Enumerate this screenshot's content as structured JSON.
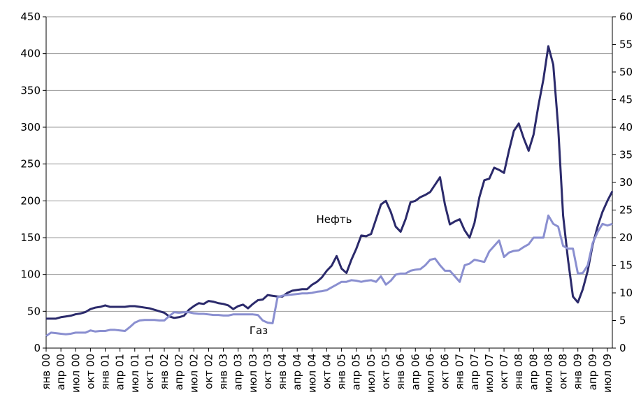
{
  "chart_data": {
    "type": "line",
    "categories": [
      "янв 00",
      null,
      null,
      "апр 00",
      null,
      null,
      "июл 00",
      null,
      null,
      "окт 00",
      null,
      null,
      "янв 01",
      null,
      null,
      "апр 01",
      null,
      null,
      "июл 01",
      null,
      null,
      "окт 01",
      null,
      null,
      "янв 02",
      null,
      null,
      "апр 02",
      null,
      null,
      "июл 02",
      null,
      null,
      "окт 02",
      null,
      null,
      "янв 03",
      null,
      null,
      "апр 03",
      null,
      null,
      "июл 03",
      null,
      null,
      "окт 03",
      null,
      null,
      "янв 04",
      null,
      null,
      "апр 04",
      null,
      null,
      "июл 04",
      null,
      null,
      "окт 04",
      null,
      null,
      "янв 05",
      null,
      null,
      "апр 05",
      null,
      null,
      "июл 05",
      null,
      null,
      "окт 05",
      null,
      null,
      "янв 06",
      null,
      null,
      "апр 06",
      null,
      null,
      "июл 06",
      null,
      null,
      "окт 06",
      null,
      null,
      "янв 07",
      null,
      null,
      "апр 07",
      null,
      null,
      "июл 07",
      null,
      null,
      "окт 07",
      null,
      null,
      "янв 08",
      null,
      null,
      "апр 08",
      null,
      null,
      "июл 08",
      null,
      null,
      "окт 08",
      null,
      null,
      "янв 09",
      null,
      null,
      "апр 09",
      null,
      null,
      "июл 09",
      null
    ],
    "series": [
      {
        "name": "Нефть",
        "color": "#2b2a6b",
        "values": [
          40,
          40,
          40,
          42,
          43,
          44,
          46,
          47,
          49,
          53,
          55,
          56,
          58,
          56,
          56,
          56,
          56,
          57,
          57,
          56,
          55,
          54,
          52,
          50,
          48,
          43,
          41,
          42,
          44,
          52,
          57,
          61,
          60,
          64,
          63,
          61,
          60,
          58,
          53,
          57,
          59,
          54,
          60,
          65,
          66,
          72,
          71,
          70,
          70,
          75,
          78,
          79,
          80,
          80,
          86,
          90,
          96,
          105,
          112,
          125,
          108,
          102,
          120,
          135,
          153,
          152,
          155,
          175,
          195,
          200,
          185,
          165,
          158,
          175,
          198,
          200,
          205,
          208,
          212,
          222,
          232,
          195,
          168,
          172,
          175,
          160,
          150,
          170,
          205,
          228,
          230,
          245,
          242,
          238,
          268,
          295,
          305,
          285,
          268,
          290,
          330,
          365,
          410,
          385,
          300,
          180,
          120,
          70,
          62,
          80,
          105,
          140,
          165,
          185,
          200,
          213
        ]
      },
      {
        "name": "Газ",
        "color": "#8a8fd0",
        "axis": "y2",
        "values": [
          2.2,
          2.8,
          2.7,
          2.6,
          2.5,
          2.6,
          2.8,
          2.8,
          2.8,
          3.2,
          3.0,
          3.1,
          3.1,
          3.3,
          3.3,
          3.2,
          3.1,
          3.8,
          4.6,
          5.0,
          5.1,
          5.1,
          5.1,
          5.0,
          5.0,
          5.8,
          6.5,
          6.4,
          6.5,
          6.5,
          6.3,
          6.2,
          6.2,
          6.1,
          6.0,
          6.0,
          5.9,
          5.9,
          6.1,
          6.1,
          6.1,
          6.1,
          6.1,
          6.0,
          5.0,
          4.6,
          4.5,
          9.2,
          9.5,
          9.6,
          9.7,
          9.8,
          9.9,
          9.9,
          10.0,
          10.2,
          10.3,
          10.5,
          11.0,
          11.5,
          12.0,
          12.0,
          12.3,
          12.2,
          12.0,
          12.2,
          12.3,
          12.0,
          13.0,
          11.5,
          12.2,
          13.3,
          13.5,
          13.5,
          14.0,
          14.2,
          14.3,
          15.0,
          16.0,
          16.2,
          15.0,
          14.0,
          14.0,
          13.0,
          12.0,
          15.0,
          15.3,
          16.0,
          15.8,
          15.6,
          17.5,
          18.5,
          19.5,
          16.5,
          17.3,
          17.6,
          17.7,
          18.3,
          18.8,
          20.0,
          20.0,
          20.0,
          24.0,
          22.5,
          22.0,
          18.5,
          18.0,
          18.0,
          13.5,
          13.6,
          15.0,
          19.0,
          21.0,
          22.5,
          22.2,
          22.5
        ]
      }
    ],
    "annotations": [
      "Нефть",
      "Газ"
    ],
    "ylim": [
      0,
      450
    ],
    "yticks": [
      0,
      50,
      100,
      150,
      200,
      250,
      300,
      350,
      400,
      450
    ],
    "y2lim": [
      0,
      60
    ],
    "y2ticks": [
      0,
      5,
      10,
      15,
      20,
      25,
      30,
      35,
      40,
      45,
      50,
      55,
      60
    ],
    "grid": true
  }
}
